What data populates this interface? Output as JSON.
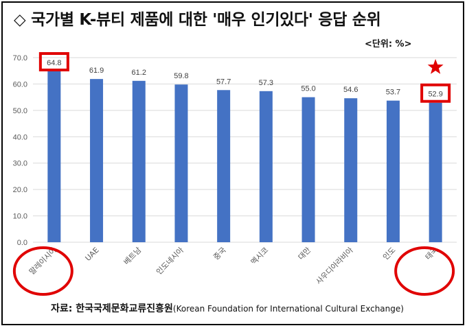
{
  "header": {
    "title": "◇ 국가별 K-뷰티 제품에 대한 '매우 인기있다' 응답 순위",
    "unit": "<단위: %>"
  },
  "source": {
    "label": "자료: 한국국제문화교류진흥원",
    "english": "(Korean Foundation for International Cultural Exchange)"
  },
  "colors": {
    "bar": "#4472C4",
    "highlight": "#E00000",
    "grid": "#D9D9D9"
  },
  "highlight_markers": {
    "box_icon": "red-rectangle",
    "circle_icon": "red-circle",
    "star_icon": "red-star"
  },
  "chart_data": {
    "type": "bar",
    "categories": [
      "말레이시아",
      "UAE",
      "베트남",
      "인도네시아",
      "중국",
      "멕시코",
      "대만",
      "사우디아라비아",
      "인도",
      "태국"
    ],
    "values": [
      64.8,
      61.9,
      61.2,
      59.8,
      57.7,
      57.3,
      55.0,
      54.6,
      53.7,
      52.9
    ],
    "value_labels": [
      "64.8",
      "61.9",
      "61.2",
      "59.8",
      "57.7",
      "57.3",
      "55.0",
      "54.6",
      "53.7",
      "52.9"
    ],
    "yticks": [
      "0.0",
      "10.0",
      "20.0",
      "30.0",
      "40.0",
      "50.0",
      "60.0",
      "70.0"
    ],
    "ylim": [
      0,
      70
    ],
    "grid": true,
    "highlighted": [
      "말레이시아",
      "태국"
    ]
  }
}
